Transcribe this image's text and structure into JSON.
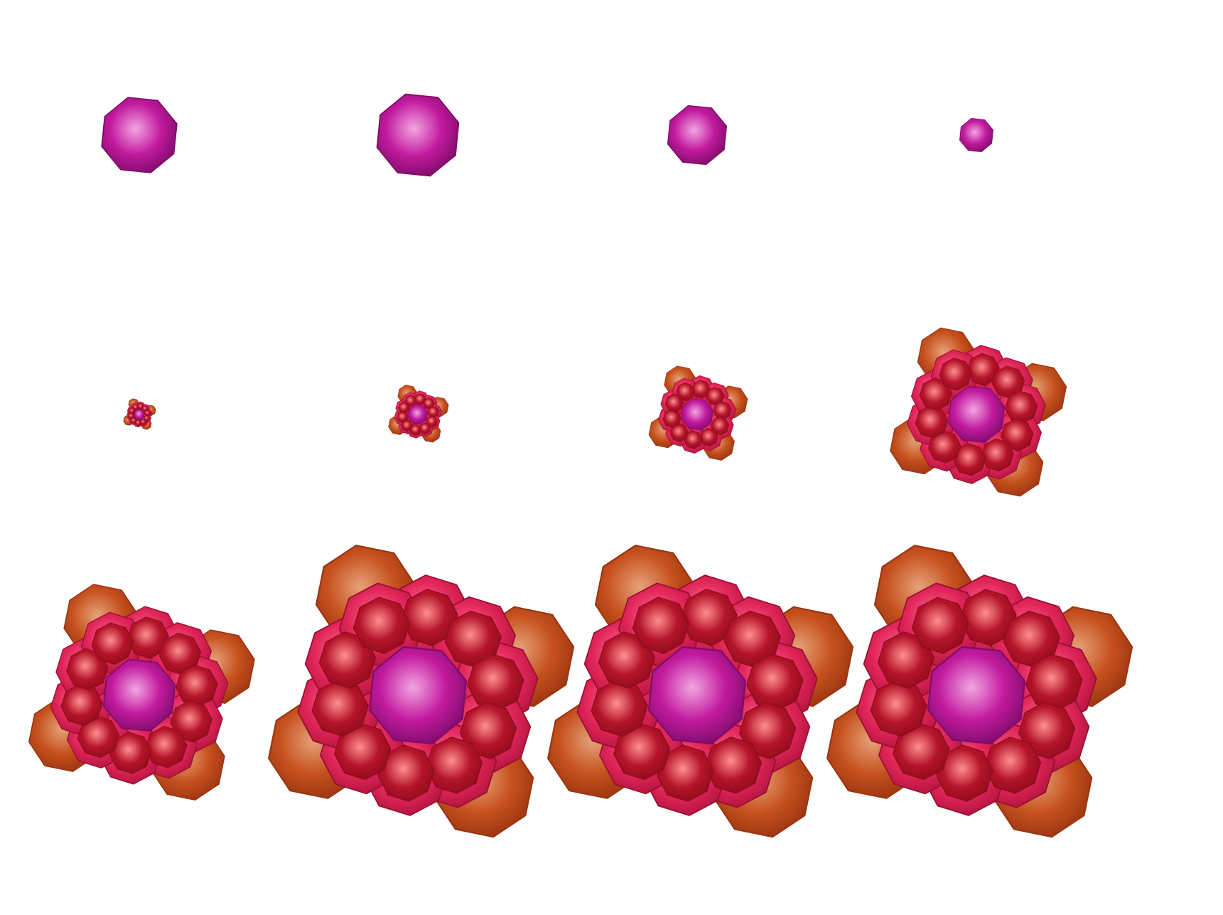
{
  "scene": {
    "background": "#ffffff",
    "rows": 3,
    "columns": 4,
    "colors": {
      "core": "#c21a9e",
      "core_edge": "#7e0c6a",
      "core_highlight": "#f2a6e2",
      "inner_shell": "#b5142a",
      "inner_shell_rim": "#e2275a",
      "inner_shell_highlight": "#ff8f8f",
      "outer_lobe": "#c6511e",
      "outer_lobe_edge": "#9a3410",
      "outer_lobe_highlight": "#e6a27a"
    },
    "panels": [
      {
        "name": "panel-r1-c1",
        "stage": "core-only",
        "size": 0.92
      },
      {
        "name": "panel-r1-c2",
        "stage": "core-only",
        "size": 1.0
      },
      {
        "name": "panel-r1-c3",
        "stage": "core-only",
        "size": 0.72
      },
      {
        "name": "panel-r1-c4",
        "stage": "core-only",
        "size": 0.41
      },
      {
        "name": "panel-r2-c1",
        "stage": "cluster",
        "size": 0.15
      },
      {
        "name": "panel-r2-c2",
        "stage": "cluster",
        "size": 0.28
      },
      {
        "name": "panel-r2-c3",
        "stage": "cluster",
        "size": 0.46
      },
      {
        "name": "panel-r2-c4",
        "stage": "cluster",
        "size": 0.82
      },
      {
        "name": "panel-r3-c1",
        "stage": "cluster",
        "size": 1.05
      },
      {
        "name": "panel-r3-c2",
        "stage": "cluster",
        "size": 1.42
      },
      {
        "name": "panel-r3-c3",
        "stage": "cluster",
        "size": 1.42
      },
      {
        "name": "panel-r3-c4",
        "stage": "cluster",
        "size": 1.42
      }
    ]
  }
}
